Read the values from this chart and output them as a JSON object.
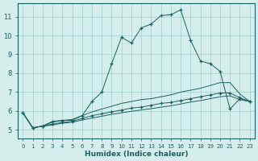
{
  "background_color": "#d4eeec",
  "grid_color": "#9fcfcc",
  "line_color": "#1a6060",
  "xlabel": "Humidex (Indice chaleur)",
  "ylabel_ticks": [
    5,
    6,
    7,
    8,
    9,
    10,
    11
  ],
  "xlim": [
    -0.5,
    23.5
  ],
  "ylim": [
    4.55,
    11.7
  ],
  "series": [
    {
      "x": [
        0,
        1,
        2,
        3,
        4,
        5,
        6,
        7,
        8,
        9,
        10,
        11,
        12,
        13,
        14,
        15,
        16,
        17,
        18,
        19,
        20,
        21,
        22,
        23
      ],
      "y": [
        5.9,
        5.1,
        5.2,
        5.45,
        5.5,
        5.5,
        5.75,
        6.5,
        7.0,
        8.5,
        9.9,
        9.6,
        10.4,
        10.6,
        11.05,
        11.1,
        11.35,
        9.75,
        8.65,
        8.5,
        8.1,
        6.1,
        6.65,
        6.5
      ],
      "marker": "+",
      "linestyle": "-"
    },
    {
      "x": [
        0,
        1,
        2,
        3,
        4,
        5,
        6,
        7,
        8,
        9,
        10,
        11,
        12,
        13,
        14,
        15,
        16,
        17,
        18,
        19,
        20,
        21,
        22,
        23
      ],
      "y": [
        5.9,
        5.1,
        5.2,
        5.4,
        5.5,
        5.55,
        5.75,
        5.95,
        6.1,
        6.25,
        6.4,
        6.5,
        6.6,
        6.65,
        6.75,
        6.85,
        7.0,
        7.1,
        7.2,
        7.35,
        7.5,
        7.5,
        6.9,
        6.5
      ],
      "marker": null,
      "linestyle": "-"
    },
    {
      "x": [
        0,
        1,
        2,
        3,
        4,
        5,
        6,
        7,
        8,
        9,
        10,
        11,
        12,
        13,
        14,
        15,
        16,
        17,
        18,
        19,
        20,
        21,
        22,
        23
      ],
      "y": [
        5.9,
        5.1,
        5.2,
        5.3,
        5.4,
        5.45,
        5.6,
        5.75,
        5.85,
        5.95,
        6.05,
        6.15,
        6.2,
        6.3,
        6.4,
        6.45,
        6.55,
        6.65,
        6.75,
        6.85,
        6.95,
        6.95,
        6.7,
        6.5
      ],
      "marker": "+",
      "linestyle": "-"
    },
    {
      "x": [
        0,
        1,
        2,
        3,
        4,
        5,
        6,
        7,
        8,
        9,
        10,
        11,
        12,
        13,
        14,
        15,
        16,
        17,
        18,
        19,
        20,
        21,
        22,
        23
      ],
      "y": [
        5.9,
        5.1,
        5.2,
        5.25,
        5.35,
        5.4,
        5.52,
        5.62,
        5.72,
        5.82,
        5.9,
        5.98,
        6.05,
        6.12,
        6.2,
        6.27,
        6.37,
        6.47,
        6.55,
        6.65,
        6.75,
        6.8,
        6.6,
        6.5
      ],
      "marker": null,
      "linestyle": "-"
    }
  ]
}
